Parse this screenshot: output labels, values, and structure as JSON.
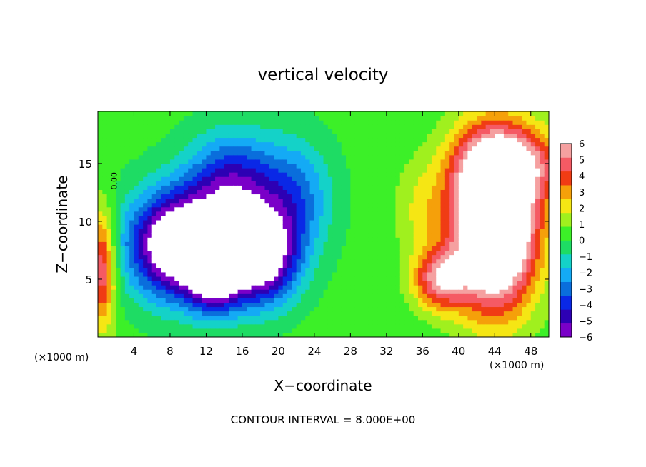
{
  "chart_data": {
    "type": "heatmap",
    "title": "vertical velocity",
    "xlabel": "X−coordinate",
    "ylabel": "Z−coordinate",
    "x_unit_left": "(×1000 m)",
    "x_unit_right": "(×1000 m)",
    "xlim": [
      0,
      50
    ],
    "ylim": [
      0,
      19.5
    ],
    "xticks": [
      4,
      8,
      12,
      16,
      20,
      24,
      28,
      32,
      36,
      40,
      44,
      48
    ],
    "yticks": [
      5,
      10,
      15
    ],
    "footer": "CONTOUR INTERVAL = 8.000E+00",
    "contour_label": "0.00",
    "colorbar": {
      "levels": [
        "6",
        "5",
        "4",
        "3",
        "2",
        "1",
        "0",
        "−1",
        "−2",
        "−3",
        "−4",
        "−5",
        "−6"
      ],
      "vmin": -6,
      "vmax": 6
    },
    "features": [
      {
        "kind": "downdraft",
        "x": 9,
        "z": 8,
        "sx": 5.5,
        "sz": 4.5,
        "amp": -9
      },
      {
        "kind": "downdraft",
        "x": 18,
        "z": 7,
        "sx": 4,
        "sz": 4,
        "amp": -8
      },
      {
        "kind": "downdraft",
        "x": 15,
        "z": 13,
        "sx": 5,
        "sz": 4.5,
        "amp": -5
      },
      {
        "kind": "downdraft",
        "x": 22,
        "z": 12,
        "sx": 4,
        "sz": 5,
        "amp": -3
      },
      {
        "kind": "downdraft",
        "x": 13,
        "z": 5,
        "sx": 3,
        "sz": 3,
        "amp": -5
      },
      {
        "kind": "updraft",
        "x": 44,
        "z": 10,
        "sx": 4.5,
        "sz": 7,
        "amp": 12
      },
      {
        "kind": "updraft",
        "x": 38,
        "z": 5,
        "sx": 3,
        "sz": 2.5,
        "amp": 5
      },
      {
        "kind": "updraft",
        "x": 46,
        "z": 15,
        "sx": 6,
        "sz": 3,
        "amp": 4
      },
      {
        "kind": "updraft",
        "x": 0.5,
        "z": 6,
        "sx": 1.5,
        "sz": 5,
        "amp": 5
      },
      {
        "kind": "updraft",
        "x": 36,
        "z": 11,
        "sx": 3,
        "sz": 4,
        "amp": 1.5
      }
    ]
  }
}
